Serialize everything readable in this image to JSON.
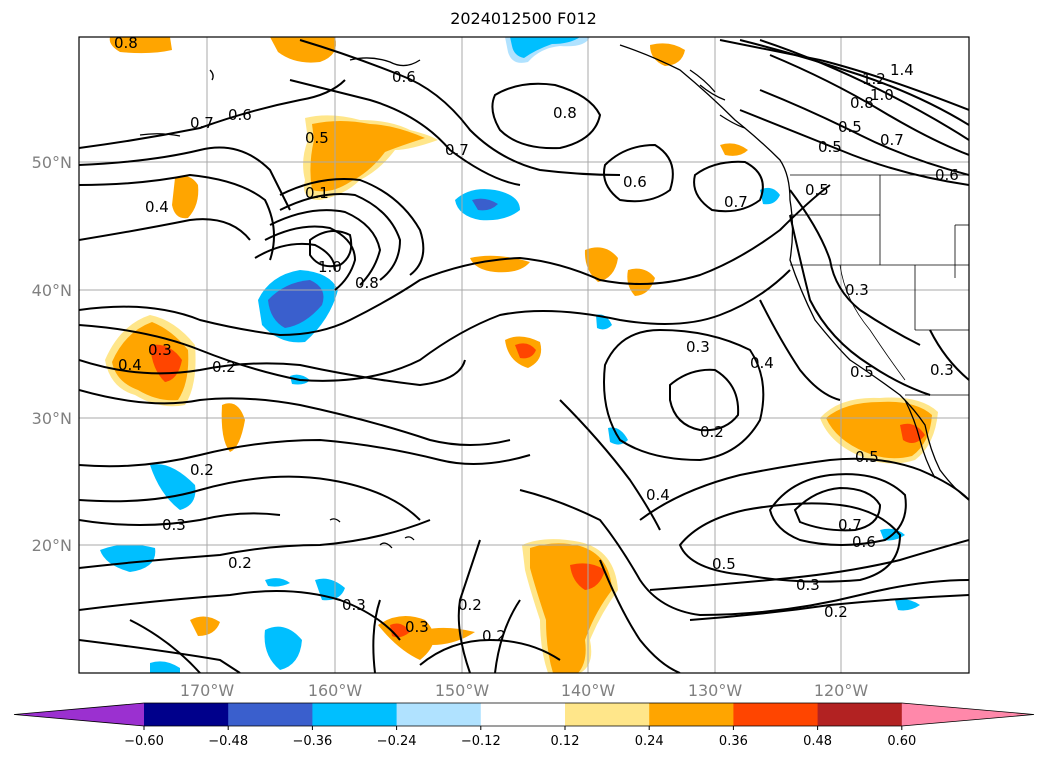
{
  "title": "2024012500 F012",
  "lat_labels": [
    "50°N",
    "40°N",
    "30°N",
    "20°N"
  ],
  "lon_labels": [
    "170°W",
    "160°W",
    "150°W",
    "140°W",
    "130°W",
    "120°W"
  ],
  "contour_labels": [
    "0.8",
    "0.7",
    "0.6",
    "0.5",
    "0.1",
    "0.4",
    "1.0",
    "0.8",
    "0.7",
    "0.6",
    "0.8",
    "0.6",
    "0.7",
    "0.5",
    "1.4",
    "1.2",
    "1.0",
    "0.8",
    "0.5",
    "0.7",
    "0.6",
    "0.4",
    "0.3",
    "0.2",
    "0.2",
    "0.3",
    "0.3",
    "0.4",
    "0.3",
    "0.2",
    "0.5",
    "0.3",
    "0.5",
    "0.7",
    "0.6",
    "0.5",
    "0.4",
    "0.3",
    "0.2",
    "0.2",
    "0.3",
    "0.3",
    "0.2",
    "0.2",
    "0.5"
  ],
  "colorbar": {
    "colors": [
      "#9b30d0",
      "#00008b",
      "#3a5fcd",
      "#00bfff",
      "#b0e2ff",
      "#ffffff",
      "#ffe68a",
      "#ffa500",
      "#ff4500",
      "#b22222",
      "#ff88aa"
    ],
    "tick_labels": [
      "−0.60",
      "−0.48",
      "−0.36",
      "−0.24",
      "−0.12",
      "0.12",
      "0.24",
      "0.36",
      "0.48",
      "0.60"
    ]
  }
}
